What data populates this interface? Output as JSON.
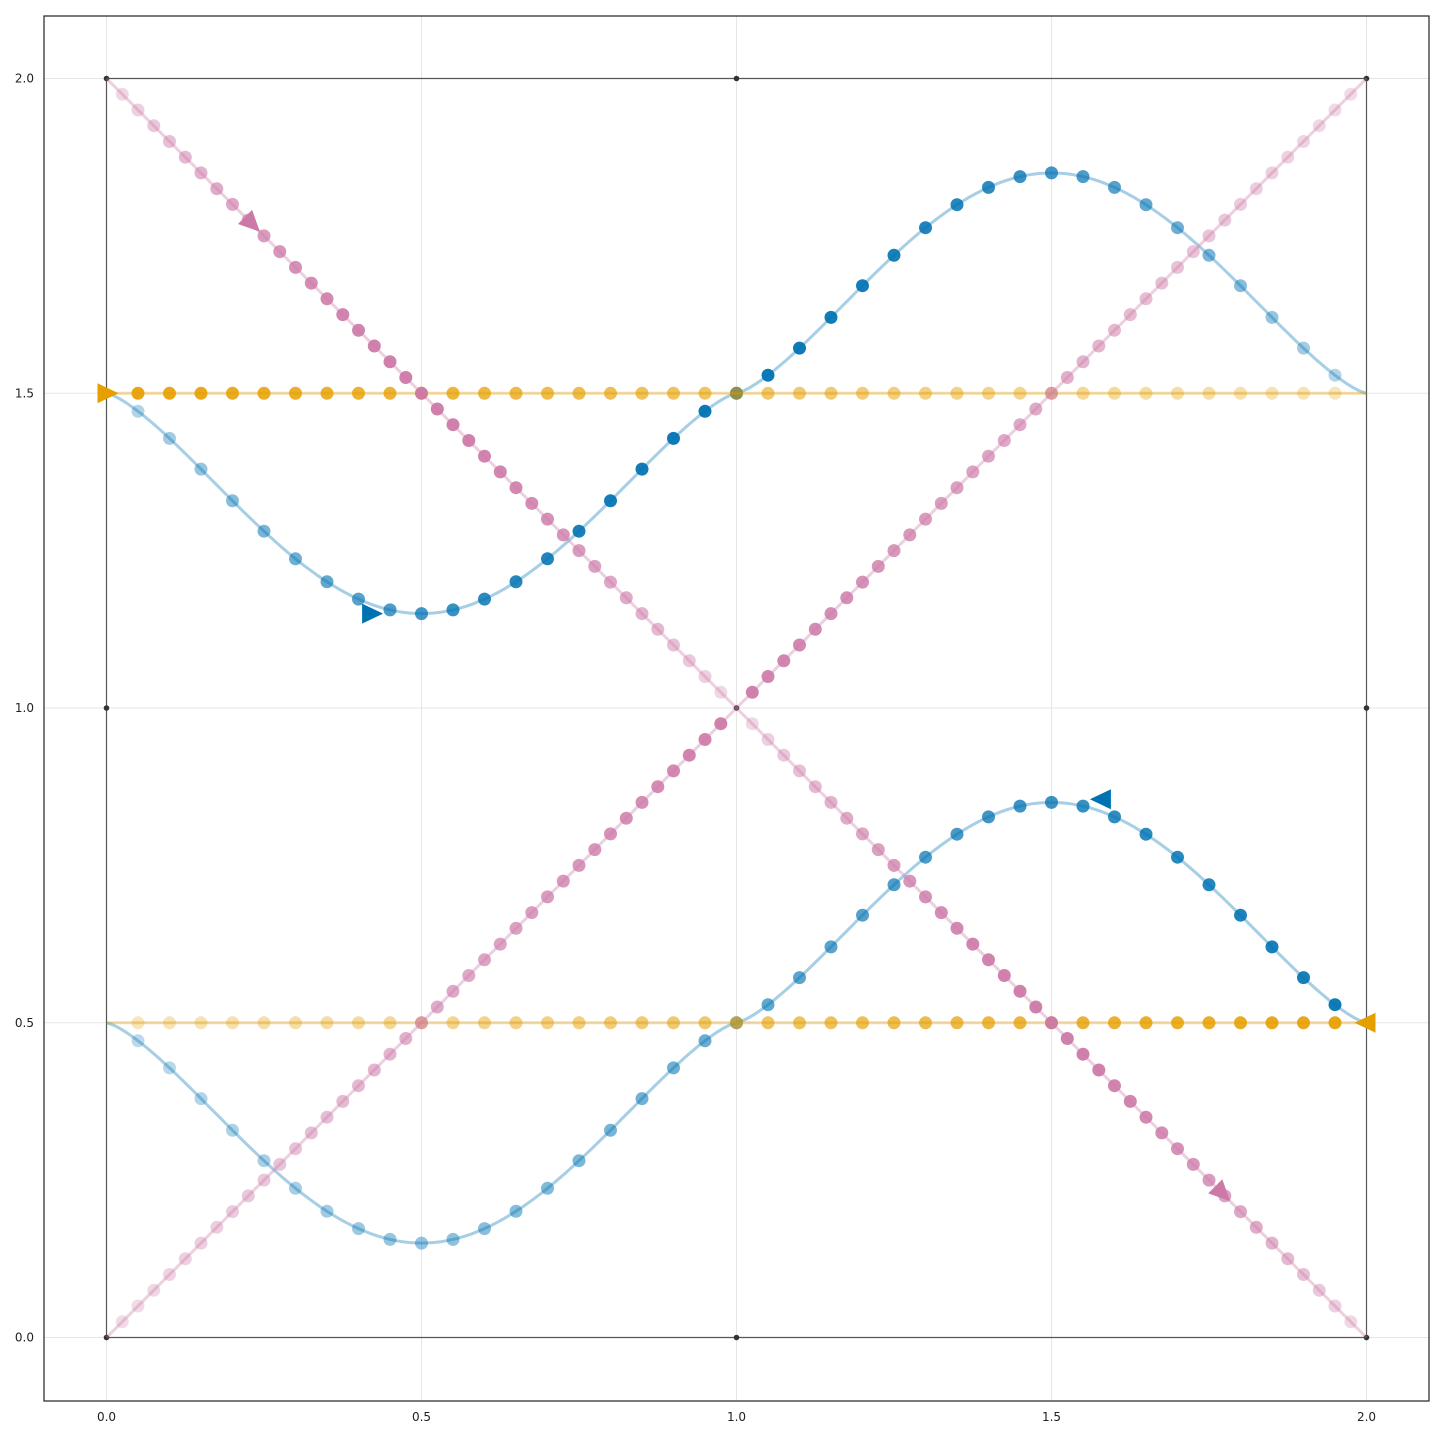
{
  "chart_data": {
    "type": "line",
    "title": "",
    "xlabel": "",
    "ylabel": "",
    "xlim": [
      -0.1,
      2.1
    ],
    "ylim": [
      -0.1,
      2.1
    ],
    "grid": true,
    "x_ticks": [
      "0.0",
      "0.5",
      "1.0",
      "1.5",
      "2.0"
    ],
    "y_ticks": [
      "0.0",
      "0.5",
      "1.0",
      "1.5",
      "2.0"
    ],
    "colors": {
      "blue": "#0072b2",
      "orange": "#e69f00",
      "pink": "#cc79a7",
      "frame": "#555555",
      "grid": "#e6e6e6"
    },
    "frame_nodes": [
      [
        0,
        0
      ],
      [
        1,
        0
      ],
      [
        2,
        0
      ],
      [
        0,
        1
      ],
      [
        1,
        1
      ],
      [
        2,
        1
      ],
      [
        0,
        2
      ],
      [
        1,
        2
      ],
      [
        2,
        2
      ]
    ],
    "series": [
      {
        "color": "blue",
        "curve": "sigmoid-wave",
        "direction": "forward",
        "points_per_series": 40,
        "parameters": [
          {
            "x_start": 0,
            "x_end": 2,
            "y_center": 0.5,
            "amplitude": 0.35,
            "opacity_ramp": "rising"
          },
          {
            "x_start": 0,
            "x_end": 2,
            "y_center": 1.5,
            "amplitude": 0.35,
            "opacity_ramp": "peak-middle"
          }
        ]
      },
      {
        "color": "orange",
        "curve": "horizontal",
        "points_per_series": 40,
        "parameters": [
          {
            "x_start": 0,
            "x_end": 2,
            "y": 1.5,
            "opacity_ramp": "falling"
          },
          {
            "x_start": 2,
            "x_end": 0,
            "y": 0.5,
            "opacity_ramp": "falling"
          }
        ]
      },
      {
        "color": "pink",
        "curve": "diagonal",
        "points_per_series": 40,
        "parameters": [
          {
            "x_start": 0,
            "y_start": 2,
            "x_end": 1,
            "y_end": 1,
            "opacity_ramp": "peak-middle"
          },
          {
            "x_start": 1,
            "y_start": 1,
            "x_end": 2,
            "y_end": 0,
            "opacity_ramp": "peak-middle"
          },
          {
            "x_start": 0,
            "y_start": 0,
            "x_end": 1,
            "y_end": 1,
            "opacity_ramp": "rising"
          },
          {
            "x_start": 1,
            "y_start": 1,
            "x_end": 2,
            "y_end": 2,
            "opacity_ramp": "falling"
          }
        ]
      }
    ],
    "markers": [
      {
        "series": "blue",
        "x": 0.42,
        "y": 1.15,
        "direction": "right"
      },
      {
        "series": "blue",
        "x": 1.58,
        "y": 0.855,
        "direction": "left"
      },
      {
        "series": "orange",
        "x": 0.0,
        "y": 1.5,
        "direction": "right"
      },
      {
        "series": "orange",
        "x": 2.0,
        "y": 0.5,
        "direction": "left"
      },
      {
        "series": "pink",
        "x": 0.23,
        "y": 1.77,
        "direction": "down-right"
      },
      {
        "series": "pink",
        "x": 1.77,
        "y": 0.23,
        "direction": "down-right"
      }
    ]
  }
}
